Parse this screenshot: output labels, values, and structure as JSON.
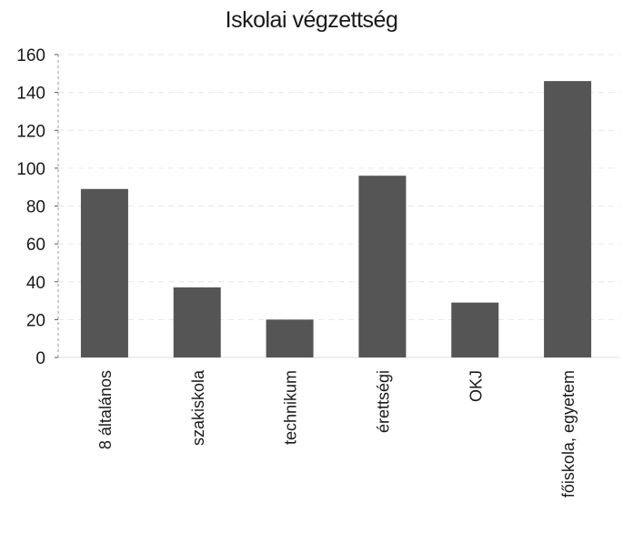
{
  "chart_data": {
    "type": "bar",
    "title": "Iskolai végzettség",
    "xlabel": "",
    "ylabel": "",
    "categories": [
      "8 általános",
      "szakiskola",
      "technikum",
      "érettségi",
      "OKJ",
      "főiskola, egyetem"
    ],
    "values": [
      89,
      37,
      20,
      96,
      29,
      146
    ],
    "ylim": [
      0,
      160
    ],
    "yticks": [
      0,
      20,
      40,
      60,
      80,
      100,
      120,
      140,
      160
    ],
    "grid": true,
    "legend": "none",
    "bar_color": "#555555"
  }
}
